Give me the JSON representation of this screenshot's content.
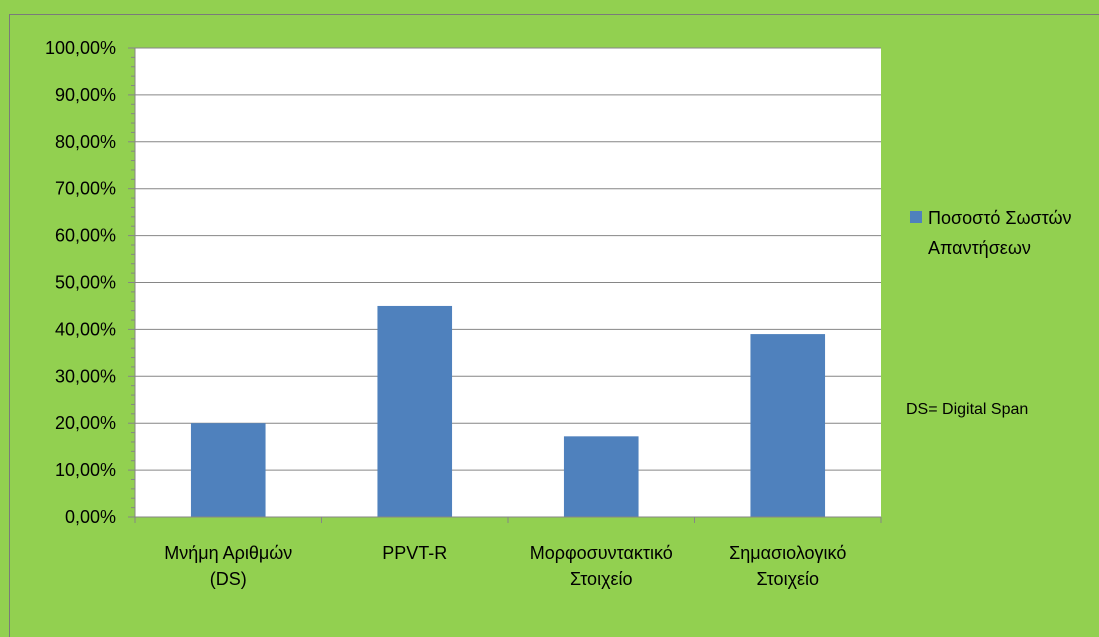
{
  "chart_data": {
    "type": "bar",
    "categories": [
      [
        "Μνήμη Αριθμών",
        "(DS)"
      ],
      [
        "PPVT-R"
      ],
      [
        "Μορφοσυντακτικό",
        "Στοιχείο"
      ],
      [
        "Σημασιολογικό",
        "Στοιχείο"
      ]
    ],
    "series": [
      {
        "name": "Ποσοστό Σωστών Απαντήσεων",
        "values": [
          20,
          45,
          17.2,
          39
        ]
      }
    ],
    "ylim": [
      0,
      100
    ],
    "yticks": [
      "0,00%",
      "10,00%",
      "20,00%",
      "30,00%",
      "40,00%",
      "50,00%",
      "60,00%",
      "70,00%",
      "80,00%",
      "90,00%",
      "100,00%"
    ],
    "legend": {
      "lines": [
        "Ποσοστό Σωστών",
        "Απαντήσεων"
      ],
      "position": "right"
    },
    "annotation": "DS= Digital Span",
    "colors": {
      "bar": "#4f81bd",
      "plot_bg": "#ffffff",
      "chart_bg": "#92d050",
      "grid": "#868686"
    },
    "grid": true
  }
}
